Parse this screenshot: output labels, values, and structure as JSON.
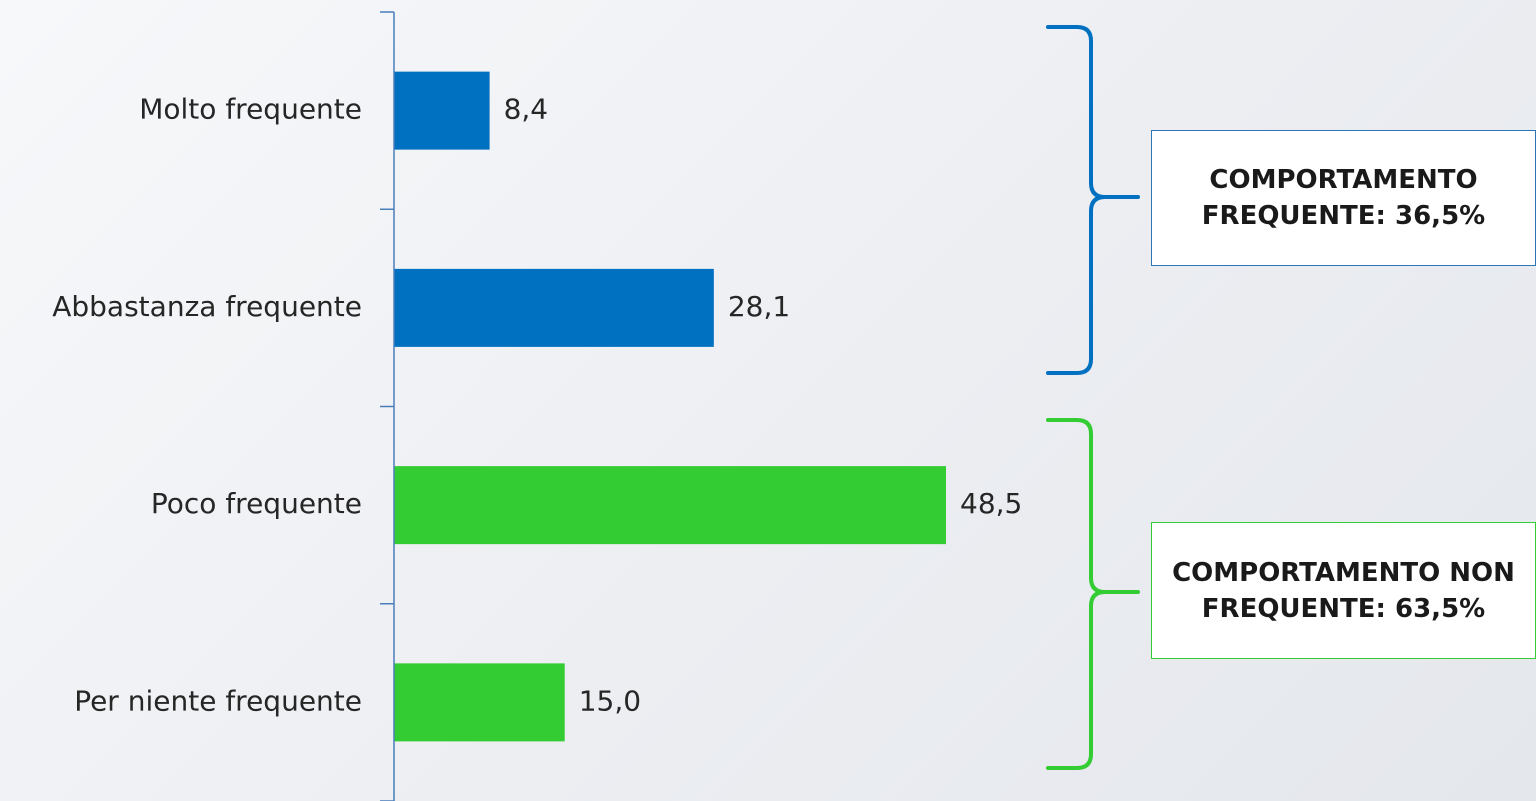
{
  "chart_data": {
    "type": "bar",
    "orientation": "horizontal",
    "categories": [
      "Molto frequente",
      "Abbastanza frequente",
      "Poco frequente",
      "Per niente frequente"
    ],
    "values": [
      8.4,
      28.1,
      48.5,
      15.0
    ],
    "value_labels": [
      "8,4",
      "28,1",
      "48,5",
      "15,0"
    ],
    "bar_colors": [
      "#0070c0",
      "#0070c0",
      "#33cc33",
      "#33cc33"
    ],
    "xlim": [
      0,
      60
    ],
    "grid": false,
    "legend": "none"
  },
  "groups": [
    {
      "id": "frequent",
      "label": "COMPORTAMENTO FREQUENTE: 36,5%",
      "color": "#0070c0",
      "categories": [
        "Molto frequente",
        "Abbastanza frequente"
      ]
    },
    {
      "id": "nonfrequent",
      "label": "COMPORTAMENTO NON FREQUENTE: 63,5%",
      "color": "#33cc33",
      "categories": [
        "Poco frequente",
        "Per niente frequente"
      ]
    }
  ]
}
